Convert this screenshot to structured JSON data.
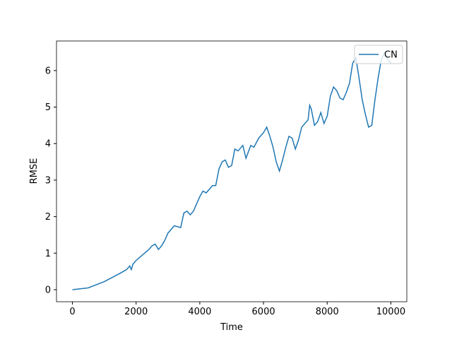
{
  "chart_data": {
    "type": "line",
    "x_label": "Time",
    "y_label": "RMSE",
    "x": [
      0,
      500,
      1000,
      1500,
      1700,
      1800,
      1850,
      1900,
      2000,
      2200,
      2400,
      2500,
      2600,
      2700,
      2800,
      2900,
      3000,
      3200,
      3400,
      3500,
      3600,
      3700,
      3800,
      4000,
      4100,
      4200,
      4400,
      4500,
      4600,
      4700,
      4800,
      4900,
      5000,
      5100,
      5200,
      5350,
      5450,
      5600,
      5700,
      5850,
      6000,
      6100,
      6200,
      6300,
      6400,
      6500,
      6600,
      6700,
      6800,
      6900,
      7000,
      7100,
      7200,
      7300,
      7400,
      7450,
      7500,
      7600,
      7700,
      7800,
      7900,
      8000,
      8100,
      8200,
      8300,
      8400,
      8500,
      8600,
      8700,
      8800,
      8900,
      9000,
      9100,
      9200,
      9300,
      9400,
      9500,
      9600,
      9700,
      9800,
      9900,
      10000
    ],
    "series": [
      {
        "name": "CN",
        "color": "#1f77b4",
        "values": [
          0,
          0.05,
          0.22,
          0.45,
          0.55,
          0.65,
          0.55,
          0.7,
          0.8,
          0.95,
          1.1,
          1.2,
          1.25,
          1.1,
          1.2,
          1.35,
          1.55,
          1.75,
          1.7,
          2.1,
          2.15,
          2.05,
          2.15,
          2.55,
          2.7,
          2.65,
          2.85,
          2.85,
          3.3,
          3.5,
          3.55,
          3.35,
          3.4,
          3.85,
          3.8,
          3.95,
          3.6,
          3.95,
          3.9,
          4.15,
          4.3,
          4.45,
          4.2,
          3.9,
          3.5,
          3.25,
          3.55,
          3.9,
          4.2,
          4.15,
          3.85,
          4.1,
          4.45,
          4.55,
          4.65,
          5.05,
          4.95,
          4.5,
          4.6,
          4.85,
          4.55,
          4.75,
          5.3,
          5.55,
          5.45,
          5.25,
          5.2,
          5.4,
          5.65,
          6.2,
          6.35,
          5.8,
          5.2,
          4.8,
          4.45,
          4.5,
          5.2,
          5.8,
          6.3,
          6.5,
          6.3,
          6.2
        ]
      }
    ],
    "xlim": [
      -500,
      10500
    ],
    "ylim": [
      -0.33,
      6.81
    ],
    "xticks": [
      0,
      2000,
      4000,
      6000,
      8000,
      10000
    ],
    "yticks": [
      0,
      1,
      2,
      3,
      4,
      5,
      6
    ],
    "legend": "upper right"
  }
}
